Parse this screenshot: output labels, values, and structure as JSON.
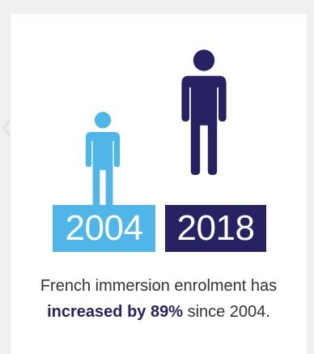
{
  "colors": {
    "figure_2004": "#4fb6e7",
    "figure_2018": "#272262",
    "highlight": "#272262",
    "background": "#f0f0ee"
  },
  "icons": {
    "small": "person-icon",
    "large": "person-icon"
  },
  "years": {
    "start": "2004",
    "end": "2018"
  },
  "caption": {
    "line1": "French immersion enrolment has",
    "highlight": "increased by 89%",
    "line2_rest": "since 2004."
  }
}
